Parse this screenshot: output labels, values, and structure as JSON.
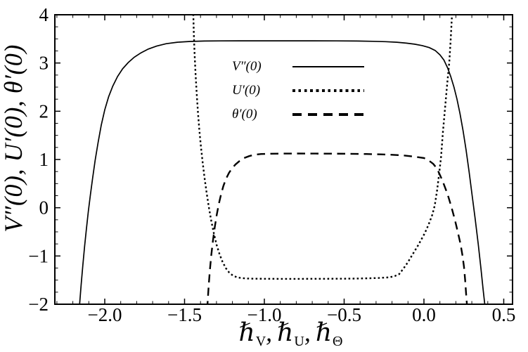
{
  "colors": {
    "background": "#ffffff",
    "line": "#000000",
    "text": "#000000"
  },
  "chart_data": {
    "type": "line",
    "title": "",
    "ylabel": "V″(0), U′(0), θ′(0)",
    "x_label": {
      "parts": [
        {
          "base": "ℏ",
          "sub": "V"
        },
        {
          "base": "ℏ",
          "sub": "U"
        },
        {
          "base": "ℏ",
          "sub": "Θ"
        }
      ],
      "seps": [
        ",",
        ","
      ]
    },
    "xlim": [
      -2.3128,
      0.5551
    ],
    "ylim": [
      -2,
      4
    ],
    "x_ticks": {
      "values": [
        -2.0,
        -1.5,
        -1.0,
        -0.5,
        0.0,
        0.5
      ],
      "labels": [
        "−2.0",
        "−1.5",
        "−1.0",
        "−0.5",
        "0.0",
        "0.5"
      ],
      "minor_step": 0.1
    },
    "y_ticks": {
      "values": [
        -2,
        -1,
        0,
        1,
        2,
        3,
        4
      ],
      "labels": [
        "−2",
        "−1",
        "0",
        "1",
        "2",
        "3",
        "4"
      ],
      "minor_step": 0.25
    },
    "grid": false,
    "frame": true,
    "legend": {
      "position": "upper-center",
      "items": [
        {
          "label": "V″(0)",
          "style": "solid"
        },
        {
          "label": "U′(0)",
          "style": "dotted"
        },
        {
          "label": "θ′(0)",
          "style": "dashed"
        }
      ]
    },
    "series": [
      {
        "id": "vpp0",
        "name": "V″(0)",
        "style": "solid",
        "points": [
          [
            -2.16,
            -2.1
          ],
          [
            -2.148,
            -1.6
          ],
          [
            -2.137,
            -1.18
          ],
          [
            -2.126,
            -0.79
          ],
          [
            -2.115,
            -0.44
          ],
          [
            -2.103,
            -0.08
          ],
          [
            -2.09,
            0.27
          ],
          [
            -2.076,
            0.62
          ],
          [
            -2.06,
            0.99
          ],
          [
            -2.042,
            1.35
          ],
          [
            -2.022,
            1.71
          ],
          [
            -2.0,
            2.03
          ],
          [
            -1.976,
            2.3
          ],
          [
            -1.95,
            2.52
          ],
          [
            -1.92,
            2.72
          ],
          [
            -1.888,
            2.88
          ],
          [
            -1.853,
            3.01
          ],
          [
            -1.815,
            3.12
          ],
          [
            -1.773,
            3.21
          ],
          [
            -1.727,
            3.29
          ],
          [
            -1.675,
            3.35
          ],
          [
            -1.615,
            3.4
          ],
          [
            -1.545,
            3.43
          ],
          [
            -1.465,
            3.447
          ],
          [
            -1.375,
            3.455
          ],
          [
            -1.27,
            3.458
          ],
          [
            -1.15,
            3.46
          ],
          [
            -1.0,
            3.46
          ],
          [
            -0.85,
            3.46
          ],
          [
            -0.7,
            3.46
          ],
          [
            -0.55,
            3.458
          ],
          [
            -0.42,
            3.455
          ],
          [
            -0.32,
            3.45
          ],
          [
            -0.24,
            3.442
          ],
          [
            -0.17,
            3.43
          ],
          [
            -0.11,
            3.412
          ],
          [
            -0.058,
            3.39
          ],
          [
            -0.01,
            3.36
          ],
          [
            0.033,
            3.32
          ],
          [
            0.07,
            3.26
          ],
          [
            0.1,
            3.17
          ],
          [
            0.125,
            3.06
          ],
          [
            0.148,
            2.9
          ],
          [
            0.168,
            2.72
          ],
          [
            0.188,
            2.5
          ],
          [
            0.207,
            2.25
          ],
          [
            0.226,
            1.95
          ],
          [
            0.245,
            1.6
          ],
          [
            0.264,
            1.2
          ],
          [
            0.283,
            0.75
          ],
          [
            0.302,
            0.26
          ],
          [
            0.32,
            -0.2
          ],
          [
            0.34,
            -0.75
          ],
          [
            0.357,
            -1.25
          ],
          [
            0.371,
            -1.7
          ],
          [
            0.381,
            -2.0
          ],
          [
            0.384,
            -2.1
          ]
        ]
      },
      {
        "id": "up0",
        "name": "U′(0)",
        "style": "dotted",
        "points": [
          [
            -1.446,
            4.1
          ],
          [
            -1.442,
            3.6
          ],
          [
            -1.437,
            3.18
          ],
          [
            -1.431,
            2.76
          ],
          [
            -1.424,
            2.36
          ],
          [
            -1.416,
            1.97
          ],
          [
            -1.407,
            1.6
          ],
          [
            -1.397,
            1.25
          ],
          [
            -1.386,
            0.92
          ],
          [
            -1.374,
            0.6
          ],
          [
            -1.361,
            0.29
          ],
          [
            -1.347,
            0.0
          ],
          [
            -1.332,
            -0.28
          ],
          [
            -1.316,
            -0.54
          ],
          [
            -1.299,
            -0.77
          ],
          [
            -1.281,
            -0.96
          ],
          [
            -1.262,
            -1.12
          ],
          [
            -1.242,
            -1.25
          ],
          [
            -1.221,
            -1.34
          ],
          [
            -1.198,
            -1.405
          ],
          [
            -1.173,
            -1.44
          ],
          [
            -1.145,
            -1.458
          ],
          [
            -1.11,
            -1.467
          ],
          [
            -1.06,
            -1.471
          ],
          [
            -0.99,
            -1.473
          ],
          [
            -0.9,
            -1.474
          ],
          [
            -0.78,
            -1.474
          ],
          [
            -0.65,
            -1.473
          ],
          [
            -0.53,
            -1.471
          ],
          [
            -0.43,
            -1.468
          ],
          [
            -0.35,
            -1.463
          ],
          [
            -0.28,
            -1.455
          ],
          [
            -0.22,
            -1.443
          ],
          [
            -0.185,
            -1.42
          ],
          [
            -0.155,
            -1.375
          ],
          [
            -0.128,
            -1.26
          ],
          [
            -0.101,
            -1.13
          ],
          [
            -0.068,
            -0.95
          ],
          [
            -0.035,
            -0.77
          ],
          [
            0.0,
            -0.56
          ],
          [
            0.016,
            -0.45
          ],
          [
            0.035,
            -0.3
          ],
          [
            0.053,
            -0.14
          ],
          [
            0.068,
            0.05
          ],
          [
            0.082,
            0.35
          ],
          [
            0.095,
            0.7
          ],
          [
            0.107,
            1.05
          ],
          [
            0.119,
            1.57
          ],
          [
            0.132,
            2.06
          ],
          [
            0.145,
            2.54
          ],
          [
            0.159,
            3.03
          ],
          [
            0.168,
            3.5
          ],
          [
            0.176,
            4.0
          ],
          [
            0.178,
            4.1
          ]
        ]
      },
      {
        "id": "thetap0",
        "name": "θ′(0)",
        "style": "dashed",
        "points": [
          [
            -1.358,
            -2.1
          ],
          [
            -1.349,
            -1.62
          ],
          [
            -1.341,
            -1.28
          ],
          [
            -1.332,
            -0.97
          ],
          [
            -1.322,
            -0.68
          ],
          [
            -1.311,
            -0.41
          ],
          [
            -1.299,
            -0.16
          ],
          [
            -1.286,
            0.07
          ],
          [
            -1.272,
            0.27
          ],
          [
            -1.257,
            0.45
          ],
          [
            -1.24,
            0.6
          ],
          [
            -1.222,
            0.72
          ],
          [
            -1.202,
            0.82
          ],
          [
            -1.18,
            0.9
          ],
          [
            -1.155,
            0.97
          ],
          [
            -1.127,
            1.03
          ],
          [
            -1.095,
            1.07
          ],
          [
            -1.06,
            1.1
          ],
          [
            -1.02,
            1.113
          ],
          [
            -0.96,
            1.12
          ],
          [
            -0.88,
            1.123
          ],
          [
            -0.79,
            1.124
          ],
          [
            -0.68,
            1.123
          ],
          [
            -0.57,
            1.121
          ],
          [
            -0.46,
            1.118
          ],
          [
            -0.36,
            1.113
          ],
          [
            -0.27,
            1.106
          ],
          [
            -0.19,
            1.096
          ],
          [
            -0.12,
            1.082
          ],
          [
            -0.06,
            1.058
          ],
          [
            0.0,
            1.03
          ],
          [
            0.03,
            0.98
          ],
          [
            0.058,
            0.91
          ],
          [
            0.082,
            0.81
          ],
          [
            0.115,
            0.57
          ],
          [
            0.148,
            0.28
          ],
          [
            0.172,
            0.02
          ],
          [
            0.194,
            -0.25
          ],
          [
            0.212,
            -0.5
          ],
          [
            0.229,
            -0.75
          ],
          [
            0.241,
            -0.98
          ],
          [
            0.251,
            -1.23
          ],
          [
            0.258,
            -1.5
          ],
          [
            0.264,
            -1.77
          ],
          [
            0.269,
            -2.0
          ],
          [
            0.271,
            -2.1
          ]
        ]
      }
    ]
  }
}
